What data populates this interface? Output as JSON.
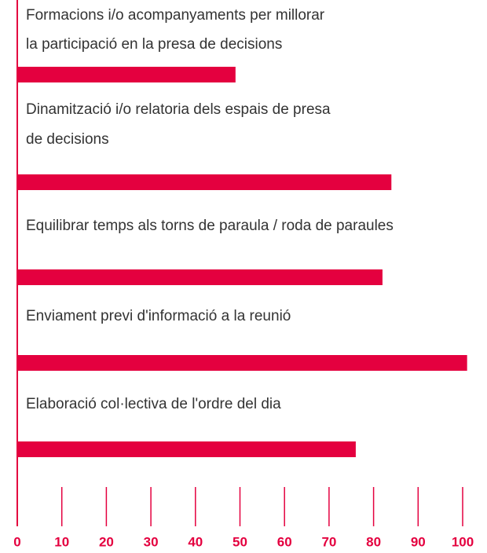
{
  "chart_data": {
    "type": "bar",
    "orientation": "horizontal",
    "categories": [
      [
        "Formacions i/o acompanyaments per millorar",
        "la participació en la presa de decisions"
      ],
      [
        "Dinamització i/o relatoria dels espais de presa",
        "de decisions"
      ],
      [
        "Equilibrar temps als torns de paraula / roda de paraules"
      ],
      [
        "Enviament previ d'informació a la reunió"
      ],
      [
        "Elaboració col·lectiva de l'ordre del dia"
      ]
    ],
    "values": [
      49,
      84,
      82,
      101,
      76
    ],
    "color": "#e4003f",
    "xlim": [
      0,
      100
    ],
    "xticks": [
      0,
      10,
      20,
      30,
      40,
      50,
      60,
      70,
      80,
      90,
      100
    ]
  }
}
